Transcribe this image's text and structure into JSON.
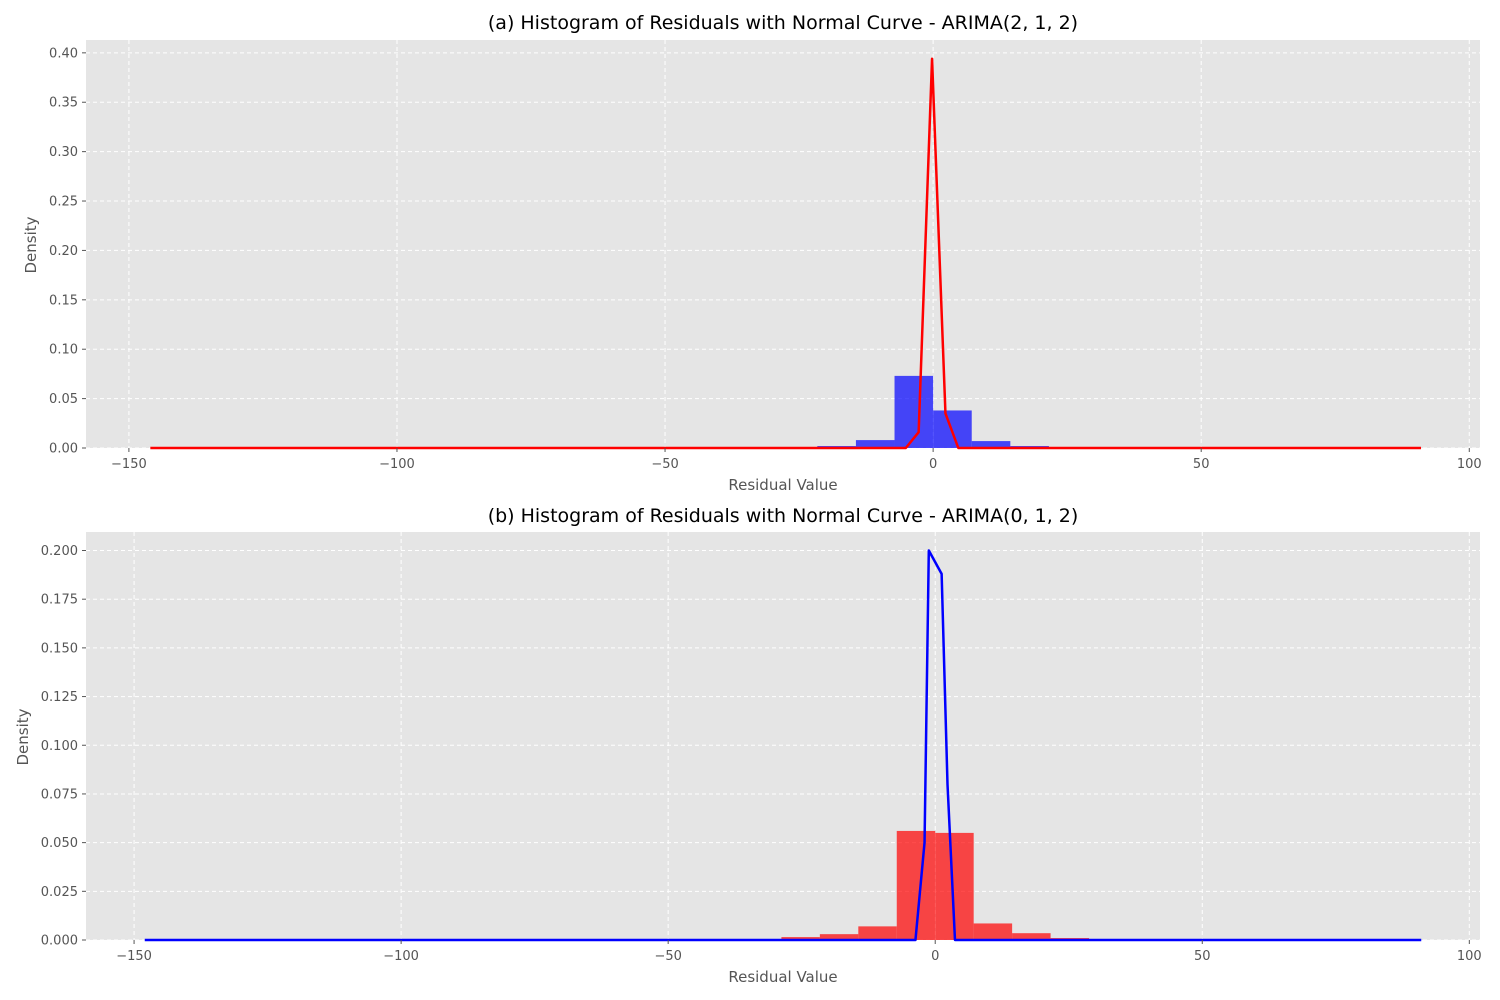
{
  "chart_data": [
    {
      "type": "bar",
      "title": "(a) Histogram of Residuals with Normal Curve - ARIMA(2, 1, 2)",
      "xlabel": "Residual Value",
      "ylabel": "Density",
      "xlim": [
        -158,
        102
      ],
      "ylim": [
        0,
        0.413
      ],
      "grid": true,
      "xticks": [
        -150,
        -100,
        -50,
        0,
        50,
        100
      ],
      "xtick_labels": [
        "−150",
        "−100",
        "−50",
        "0",
        "50",
        "100"
      ],
      "yticks": [
        0.0,
        0.05,
        0.1,
        0.15,
        0.2,
        0.25,
        0.3,
        0.35,
        0.4
      ],
      "ytick_labels": [
        "0.00",
        "0.05",
        "0.10",
        "0.15",
        "0.20",
        "0.25",
        "0.30",
        "0.35",
        "0.40"
      ],
      "histogram": {
        "color": "#0000ff",
        "opacity": 0.7,
        "bin_width": 7.2,
        "bins": [
          {
            "x0": -21.6,
            "x1": -14.4,
            "density": 0.002
          },
          {
            "x0": -14.4,
            "x1": -7.2,
            "density": 0.008
          },
          {
            "x0": -7.2,
            "x1": 0.0,
            "density": 0.073
          },
          {
            "x0": 0.0,
            "x1": 7.2,
            "density": 0.038
          },
          {
            "x0": 7.2,
            "x1": 14.4,
            "density": 0.007
          },
          {
            "x0": 14.4,
            "x1": 21.6,
            "density": 0.002
          }
        ]
      },
      "curve": {
        "color": "#ff0000",
        "x": [
          -146,
          -5.1,
          -2.7,
          -0.2,
          2.3,
          4.7,
          91
        ],
        "y": [
          0.0,
          0.0,
          0.016,
          0.394,
          0.035,
          0.0,
          0.0
        ]
      }
    },
    {
      "type": "bar",
      "title": "(b) Histogram of Residuals with Normal Curve - ARIMA(0, 1, 2)",
      "xlabel": "Residual Value",
      "ylabel": "Density",
      "xlim": [
        -159,
        102
      ],
      "ylim": [
        0,
        0.2095
      ],
      "grid": true,
      "xticks": [
        -150,
        -100,
        -50,
        0,
        50,
        100
      ],
      "xtick_labels": [
        "−150",
        "−100",
        "−50",
        "0",
        "50",
        "100"
      ],
      "yticks": [
        0.0,
        0.025,
        0.05,
        0.075,
        0.1,
        0.125,
        0.15,
        0.175,
        0.2
      ],
      "ytick_labels": [
        "0.000",
        "0.025",
        "0.050",
        "0.075",
        "0.100",
        "0.125",
        "0.150",
        "0.175",
        "0.200"
      ],
      "histogram": {
        "color": "#ff0000",
        "opacity": 0.7,
        "bin_width": 7.2,
        "bins": [
          {
            "x0": -36.0,
            "x1": -28.8,
            "density": 0.0005
          },
          {
            "x0": -28.8,
            "x1": -21.6,
            "density": 0.0015
          },
          {
            "x0": -21.6,
            "x1": -14.4,
            "density": 0.003
          },
          {
            "x0": -14.4,
            "x1": -7.2,
            "density": 0.007
          },
          {
            "x0": -7.2,
            "x1": 0.0,
            "density": 0.056
          },
          {
            "x0": 0.0,
            "x1": 7.2,
            "density": 0.055
          },
          {
            "x0": 7.2,
            "x1": 14.4,
            "density": 0.0085
          },
          {
            "x0": 14.4,
            "x1": 21.6,
            "density": 0.0035
          },
          {
            "x0": 21.6,
            "x1": 28.8,
            "density": 0.001
          },
          {
            "x0": 28.8,
            "x1": 36.0,
            "density": 0.0005
          }
        ]
      },
      "curve": {
        "color": "#0000ff",
        "x": [
          -148,
          -3.7,
          -2.0,
          -1.2,
          1.2,
          2.3,
          3.7,
          91
        ],
        "y": [
          0.0,
          0.0,
          0.05,
          0.2,
          0.188,
          0.08,
          0.0,
          0.0
        ]
      }
    }
  ]
}
